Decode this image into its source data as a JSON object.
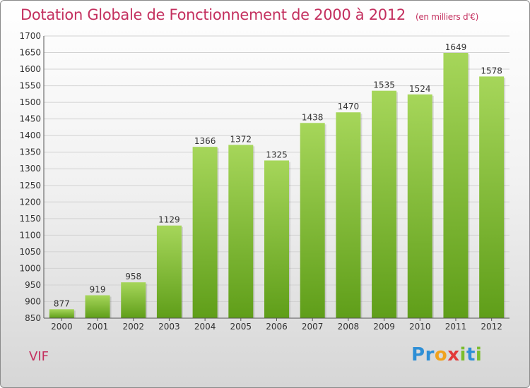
{
  "title": "Dotation Globale de Fonctionnement de 2000 à 2012",
  "unit": "(en milliers d'€)",
  "commune": "VIF",
  "logo": {
    "text": "Proxiti",
    "letters": [
      {
        "ch": "P",
        "color": "#2e8fd6"
      },
      {
        "ch": "r",
        "color": "#2e8fd6"
      },
      {
        "ch": "o",
        "color": "#f0a21e"
      },
      {
        "ch": "x",
        "color": "#e23a3a"
      },
      {
        "ch": "i",
        "color": "#7bbd2c"
      },
      {
        "ch": "t",
        "color": "#2e8fd6"
      },
      {
        "ch": "i",
        "color": "#7bbd2c"
      }
    ]
  },
  "chart_data": {
    "type": "bar",
    "categories": [
      "2000",
      "2001",
      "2002",
      "2003",
      "2004",
      "2005",
      "2006",
      "2007",
      "2008",
      "2009",
      "2010",
      "2011",
      "2012"
    ],
    "values": [
      877,
      919,
      958,
      1129,
      1366,
      1372,
      1325,
      1438,
      1470,
      1535,
      1524,
      1649,
      1578
    ],
    "ylim": [
      850,
      1700
    ],
    "yticks": [
      850,
      900,
      950,
      1000,
      1050,
      1100,
      1150,
      1200,
      1250,
      1300,
      1350,
      1400,
      1450,
      1500,
      1550,
      1600,
      1650,
      1700
    ],
    "grid": true,
    "colors": {
      "bar_light": "#a6d65a",
      "bar_dark": "#5f9e19",
      "grid": "#d2d2d2",
      "text": "#333333",
      "title": "#c4305f"
    }
  }
}
